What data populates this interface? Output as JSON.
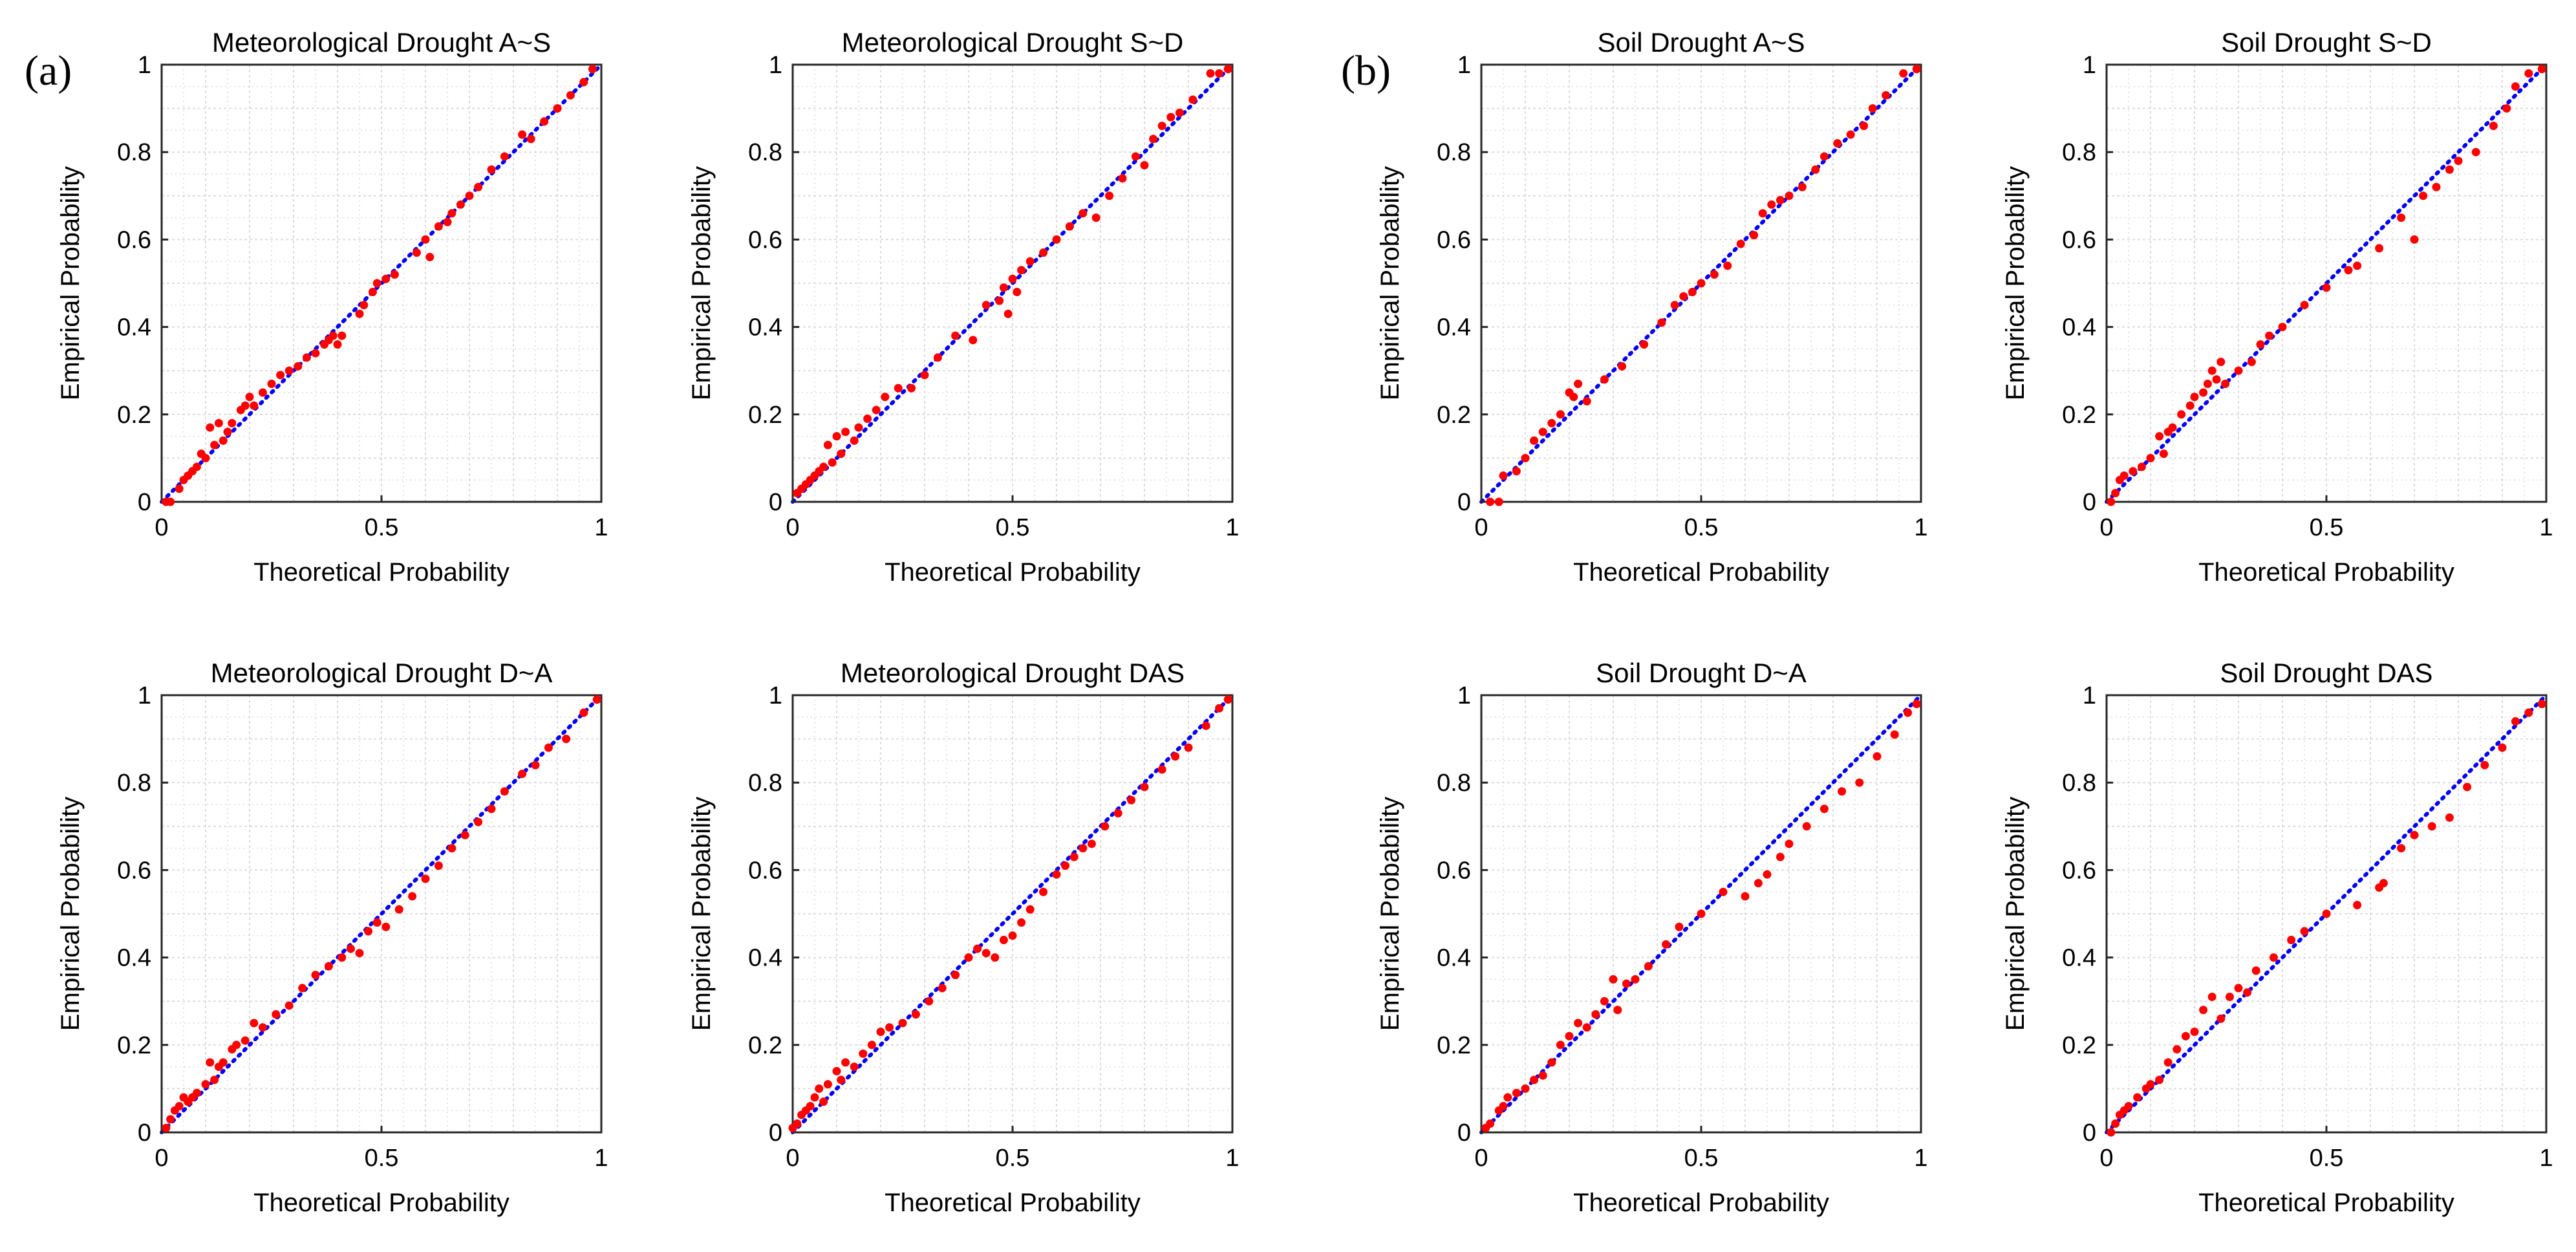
{
  "panel_labels": [
    "(a)",
    "(b)"
  ],
  "colors": {
    "points": "#ff0000",
    "diagonal": "#0000ff",
    "grid": "#dcdcdc",
    "axes": "#262626"
  },
  "chart_data": [
    {
      "type": "scatter",
      "title": "Meteorological Drought A~S",
      "xlabel": "Theoretical Probability",
      "ylabel": "Empirical Probability",
      "xlim": [
        0,
        1
      ],
      "ylim": [
        0,
        1
      ],
      "xticks": [
        "0",
        "0.5",
        "1"
      ],
      "yticks": [
        "0",
        "0.2",
        "0.4",
        "0.6",
        "0.8",
        "1"
      ],
      "grid": true,
      "reference_line": "y = x (blue dotted)",
      "x": [
        0.01,
        0.02,
        0.04,
        0.05,
        0.06,
        0.07,
        0.08,
        0.09,
        0.1,
        0.11,
        0.12,
        0.13,
        0.14,
        0.15,
        0.16,
        0.18,
        0.19,
        0.2,
        0.21,
        0.23,
        0.25,
        0.27,
        0.29,
        0.31,
        0.33,
        0.35,
        0.37,
        0.38,
        0.39,
        0.4,
        0.41,
        0.45,
        0.46,
        0.48,
        0.49,
        0.51,
        0.53,
        0.58,
        0.6,
        0.61,
        0.63,
        0.65,
        0.66,
        0.68,
        0.7,
        0.72,
        0.75,
        0.78,
        0.82,
        0.84,
        0.87,
        0.9,
        0.93,
        0.96,
        0.98
      ],
      "y": [
        0.0,
        0.0,
        0.03,
        0.05,
        0.06,
        0.07,
        0.08,
        0.11,
        0.1,
        0.17,
        0.13,
        0.18,
        0.14,
        0.16,
        0.18,
        0.21,
        0.22,
        0.24,
        0.22,
        0.25,
        0.27,
        0.29,
        0.3,
        0.31,
        0.33,
        0.34,
        0.36,
        0.37,
        0.38,
        0.36,
        0.38,
        0.43,
        0.45,
        0.48,
        0.5,
        0.51,
        0.52,
        0.57,
        0.6,
        0.56,
        0.63,
        0.64,
        0.66,
        0.68,
        0.7,
        0.72,
        0.76,
        0.79,
        0.84,
        0.83,
        0.87,
        0.9,
        0.93,
        0.96,
        0.99
      ]
    },
    {
      "type": "scatter",
      "title": "Meteorological Drought S~D",
      "xlabel": "Theoretical Probability",
      "ylabel": "Empirical Probability",
      "xlim": [
        0,
        1
      ],
      "ylim": [
        0,
        1
      ],
      "xticks": [
        "0",
        "0.5",
        "1"
      ],
      "yticks": [
        "0",
        "0.2",
        "0.4",
        "0.6",
        "0.8",
        "1"
      ],
      "grid": true,
      "reference_line": "y = x (blue dotted)",
      "x": [
        0.01,
        0.02,
        0.03,
        0.04,
        0.05,
        0.06,
        0.07,
        0.08,
        0.09,
        0.1,
        0.11,
        0.12,
        0.14,
        0.15,
        0.17,
        0.19,
        0.21,
        0.24,
        0.27,
        0.3,
        0.33,
        0.37,
        0.41,
        0.44,
        0.47,
        0.48,
        0.49,
        0.5,
        0.51,
        0.52,
        0.54,
        0.57,
        0.6,
        0.63,
        0.66,
        0.69,
        0.72,
        0.75,
        0.78,
        0.8,
        0.82,
        0.84,
        0.86,
        0.88,
        0.91,
        0.95,
        0.97,
        0.99
      ],
      "y": [
        0.02,
        0.03,
        0.04,
        0.05,
        0.06,
        0.07,
        0.08,
        0.13,
        0.09,
        0.15,
        0.11,
        0.16,
        0.14,
        0.17,
        0.19,
        0.21,
        0.24,
        0.26,
        0.26,
        0.29,
        0.33,
        0.38,
        0.37,
        0.45,
        0.46,
        0.49,
        0.43,
        0.51,
        0.48,
        0.53,
        0.55,
        0.57,
        0.6,
        0.63,
        0.66,
        0.65,
        0.7,
        0.74,
        0.79,
        0.77,
        0.83,
        0.86,
        0.88,
        0.89,
        0.92,
        0.98,
        0.98,
        0.99
      ]
    },
    {
      "type": "scatter",
      "title": "Soil Drought A~S",
      "xlabel": "Theoretical Probability",
      "ylabel": "Empirical Probability",
      "xlim": [
        0,
        1
      ],
      "ylim": [
        0,
        1
      ],
      "xticks": [
        "0",
        "0.5",
        "1"
      ],
      "yticks": [
        "0",
        "0.2",
        "0.4",
        "0.6",
        "0.8",
        "1"
      ],
      "grid": true,
      "reference_line": "y = x (blue dotted)",
      "x": [
        0.02,
        0.04,
        0.05,
        0.08,
        0.1,
        0.12,
        0.14,
        0.16,
        0.18,
        0.2,
        0.21,
        0.22,
        0.24,
        0.28,
        0.32,
        0.37,
        0.41,
        0.44,
        0.46,
        0.48,
        0.5,
        0.53,
        0.56,
        0.59,
        0.62,
        0.64,
        0.66,
        0.68,
        0.7,
        0.73,
        0.76,
        0.78,
        0.81,
        0.84,
        0.87,
        0.89,
        0.92,
        0.96,
        0.99
      ],
      "y": [
        0.0,
        0.0,
        0.06,
        0.07,
        0.1,
        0.14,
        0.16,
        0.18,
        0.2,
        0.25,
        0.24,
        0.27,
        0.23,
        0.28,
        0.31,
        0.36,
        0.41,
        0.45,
        0.47,
        0.48,
        0.5,
        0.52,
        0.54,
        0.59,
        0.61,
        0.66,
        0.68,
        0.69,
        0.7,
        0.72,
        0.76,
        0.79,
        0.82,
        0.84,
        0.86,
        0.9,
        0.93,
        0.98,
        0.99
      ]
    },
    {
      "type": "scatter",
      "title": "Soil Drought S~D",
      "xlabel": "Theoretical Probability",
      "ylabel": "Empirical Probability",
      "xlim": [
        0,
        1
      ],
      "ylim": [
        0,
        1
      ],
      "xticks": [
        "0",
        "0.5",
        "1"
      ],
      "yticks": [
        "0",
        "0.2",
        "0.4",
        "0.6",
        "0.8",
        "1"
      ],
      "grid": true,
      "reference_line": "y = x (blue dotted)",
      "x": [
        0.01,
        0.02,
        0.03,
        0.04,
        0.06,
        0.08,
        0.1,
        0.12,
        0.13,
        0.14,
        0.15,
        0.17,
        0.19,
        0.2,
        0.22,
        0.23,
        0.24,
        0.25,
        0.26,
        0.27,
        0.3,
        0.33,
        0.35,
        0.37,
        0.4,
        0.45,
        0.5,
        0.55,
        0.57,
        0.62,
        0.67,
        0.7,
        0.72,
        0.75,
        0.78,
        0.8,
        0.84,
        0.88,
        0.91,
        0.93,
        0.96,
        0.99
      ],
      "y": [
        0.0,
        0.02,
        0.05,
        0.06,
        0.07,
        0.08,
        0.1,
        0.15,
        0.11,
        0.16,
        0.17,
        0.2,
        0.22,
        0.24,
        0.25,
        0.27,
        0.3,
        0.28,
        0.32,
        0.27,
        0.3,
        0.32,
        0.36,
        0.38,
        0.4,
        0.45,
        0.49,
        0.53,
        0.54,
        0.58,
        0.65,
        0.6,
        0.7,
        0.72,
        0.76,
        0.78,
        0.8,
        0.86,
        0.9,
        0.95,
        0.98,
        0.99
      ]
    },
    {
      "type": "scatter",
      "title": "Meteorological Drought D~A",
      "xlabel": "Theoretical Probability",
      "ylabel": "Empirical Probability",
      "xlim": [
        0,
        1
      ],
      "ylim": [
        0,
        1
      ],
      "xticks": [
        "0",
        "0.5",
        "1"
      ],
      "yticks": [
        "0",
        "0.2",
        "0.4",
        "0.6",
        "0.8",
        "1"
      ],
      "grid": true,
      "reference_line": "y = x (blue dotted)",
      "x": [
        0.01,
        0.02,
        0.03,
        0.04,
        0.05,
        0.06,
        0.07,
        0.08,
        0.1,
        0.11,
        0.12,
        0.13,
        0.14,
        0.16,
        0.17,
        0.19,
        0.21,
        0.23,
        0.26,
        0.29,
        0.32,
        0.35,
        0.38,
        0.41,
        0.43,
        0.45,
        0.47,
        0.49,
        0.51,
        0.54,
        0.57,
        0.6,
        0.63,
        0.66,
        0.69,
        0.72,
        0.75,
        0.78,
        0.82,
        0.85,
        0.88,
        0.92,
        0.96,
        0.99
      ],
      "y": [
        0.01,
        0.03,
        0.05,
        0.06,
        0.08,
        0.07,
        0.08,
        0.09,
        0.11,
        0.16,
        0.12,
        0.15,
        0.16,
        0.19,
        0.2,
        0.21,
        0.25,
        0.24,
        0.27,
        0.29,
        0.33,
        0.36,
        0.38,
        0.4,
        0.42,
        0.41,
        0.46,
        0.48,
        0.47,
        0.51,
        0.54,
        0.58,
        0.61,
        0.65,
        0.68,
        0.71,
        0.74,
        0.78,
        0.82,
        0.84,
        0.88,
        0.9,
        0.96,
        0.99
      ]
    },
    {
      "type": "scatter",
      "title": "Meteorological Drought DAS",
      "xlabel": "Theoretical Probability",
      "ylabel": "Empirical Probability",
      "xlim": [
        0,
        1
      ],
      "ylim": [
        0,
        1
      ],
      "xticks": [
        "0",
        "0.5",
        "1"
      ],
      "yticks": [
        "0",
        "0.2",
        "0.4",
        "0.6",
        "0.8",
        "1"
      ],
      "grid": true,
      "reference_line": "y = x (blue dotted)",
      "x": [
        0.0,
        0.01,
        0.02,
        0.03,
        0.04,
        0.05,
        0.06,
        0.07,
        0.08,
        0.1,
        0.11,
        0.12,
        0.14,
        0.16,
        0.18,
        0.2,
        0.22,
        0.25,
        0.28,
        0.31,
        0.34,
        0.37,
        0.4,
        0.42,
        0.44,
        0.46,
        0.48,
        0.5,
        0.52,
        0.54,
        0.57,
        0.6,
        0.62,
        0.64,
        0.66,
        0.68,
        0.71,
        0.74,
        0.77,
        0.8,
        0.84,
        0.87,
        0.9,
        0.94,
        0.97,
        0.99
      ],
      "y": [
        0.01,
        0.02,
        0.04,
        0.05,
        0.06,
        0.08,
        0.1,
        0.07,
        0.11,
        0.14,
        0.12,
        0.16,
        0.15,
        0.18,
        0.2,
        0.23,
        0.24,
        0.25,
        0.27,
        0.3,
        0.33,
        0.36,
        0.4,
        0.42,
        0.41,
        0.4,
        0.44,
        0.45,
        0.48,
        0.51,
        0.55,
        0.59,
        0.61,
        0.63,
        0.65,
        0.66,
        0.7,
        0.73,
        0.76,
        0.79,
        0.83,
        0.86,
        0.88,
        0.93,
        0.97,
        0.99
      ]
    },
    {
      "type": "scatter",
      "title": "Soil Drought D~A",
      "xlabel": "Theoretical Probability",
      "ylabel": "Empirical Probability",
      "xlim": [
        0,
        1
      ],
      "ylim": [
        0,
        1
      ],
      "xticks": [
        "0",
        "0.5",
        "1"
      ],
      "yticks": [
        "0",
        "0.2",
        "0.4",
        "0.6",
        "0.8",
        "1"
      ],
      "grid": true,
      "reference_line": "y = x (blue dotted)",
      "x": [
        0.01,
        0.02,
        0.04,
        0.05,
        0.06,
        0.08,
        0.1,
        0.12,
        0.14,
        0.16,
        0.18,
        0.2,
        0.22,
        0.24,
        0.26,
        0.28,
        0.3,
        0.31,
        0.33,
        0.35,
        0.38,
        0.42,
        0.45,
        0.5,
        0.55,
        0.6,
        0.63,
        0.65,
        0.68,
        0.7,
        0.74,
        0.78,
        0.82,
        0.86,
        0.9,
        0.94,
        0.97,
        0.99
      ],
      "y": [
        0.01,
        0.02,
        0.05,
        0.06,
        0.08,
        0.09,
        0.1,
        0.12,
        0.13,
        0.16,
        0.2,
        0.22,
        0.25,
        0.24,
        0.27,
        0.3,
        0.35,
        0.28,
        0.34,
        0.35,
        0.38,
        0.43,
        0.47,
        0.5,
        0.55,
        0.54,
        0.57,
        0.59,
        0.63,
        0.66,
        0.7,
        0.74,
        0.78,
        0.8,
        0.86,
        0.91,
        0.96,
        0.98
      ]
    },
    {
      "type": "scatter",
      "title": "Soil Drought DAS",
      "xlabel": "Theoretical Probability",
      "ylabel": "Empirical Probability",
      "xlim": [
        0,
        1
      ],
      "ylim": [
        0,
        1
      ],
      "xticks": [
        "0",
        "0.5",
        "1"
      ],
      "yticks": [
        "0",
        "0.2",
        "0.4",
        "0.6",
        "0.8",
        "1"
      ],
      "grid": true,
      "reference_line": "y = x (blue dotted)",
      "x": [
        0.01,
        0.02,
        0.03,
        0.04,
        0.05,
        0.07,
        0.09,
        0.1,
        0.12,
        0.14,
        0.16,
        0.18,
        0.2,
        0.22,
        0.24,
        0.26,
        0.28,
        0.3,
        0.32,
        0.34,
        0.38,
        0.42,
        0.45,
        0.5,
        0.57,
        0.62,
        0.63,
        0.67,
        0.7,
        0.74,
        0.78,
        0.82,
        0.86,
        0.9,
        0.93,
        0.96,
        0.99
      ],
      "y": [
        0.0,
        0.02,
        0.04,
        0.05,
        0.06,
        0.08,
        0.1,
        0.11,
        0.12,
        0.16,
        0.19,
        0.22,
        0.23,
        0.28,
        0.31,
        0.26,
        0.31,
        0.33,
        0.32,
        0.37,
        0.4,
        0.44,
        0.46,
        0.5,
        0.52,
        0.56,
        0.57,
        0.65,
        0.68,
        0.7,
        0.72,
        0.79,
        0.84,
        0.88,
        0.94,
        0.96,
        0.98
      ]
    }
  ]
}
